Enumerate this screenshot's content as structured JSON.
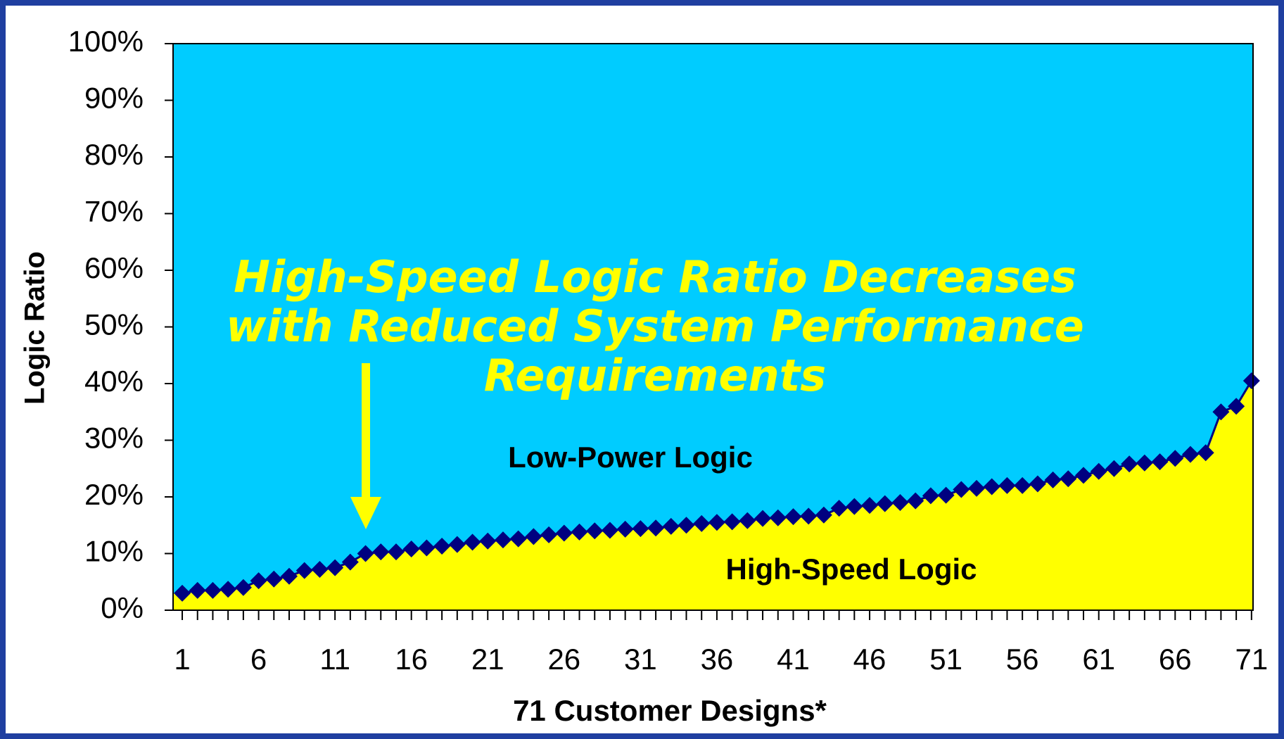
{
  "chart_data": {
    "type": "area",
    "annotation": [
      "High-Speed Logic Ratio Decreases",
      "with Reduced System Performance",
      "Requirements"
    ],
    "region_labels": [
      "Low-Power Logic",
      "High-Speed Logic"
    ],
    "x_label": "71 Customer Designs*",
    "y_label": "Logic Ratio",
    "x": [
      1,
      2,
      3,
      4,
      5,
      6,
      7,
      8,
      9,
      10,
      11,
      12,
      13,
      14,
      15,
      16,
      17,
      18,
      19,
      20,
      21,
      22,
      23,
      24,
      25,
      26,
      27,
      28,
      29,
      30,
      31,
      32,
      33,
      34,
      35,
      36,
      37,
      38,
      39,
      40,
      41,
      42,
      43,
      44,
      45,
      46,
      47,
      48,
      49,
      50,
      51,
      52,
      53,
      54,
      55,
      56,
      57,
      58,
      59,
      60,
      61,
      62,
      63,
      64,
      65,
      66,
      67,
      68,
      69,
      70,
      71
    ],
    "series": [
      {
        "name": "High-Speed Logic",
        "color": "#ffff00",
        "line_color": "#000080",
        "values": [
          3,
          3.5,
          3.5,
          3.7,
          4,
          5.2,
          5.5,
          6,
          7,
          7.2,
          7.5,
          8.5,
          10,
          10.3,
          10.3,
          10.8,
          11,
          11.3,
          11.6,
          12,
          12.2,
          12.4,
          12.6,
          13,
          13.3,
          13.6,
          13.8,
          14,
          14.1,
          14.3,
          14.4,
          14.5,
          14.8,
          15,
          15.3,
          15.5,
          15.6,
          15.8,
          16.2,
          16.3,
          16.5,
          16.6,
          16.8,
          18,
          18.3,
          18.5,
          18.8,
          19,
          19.3,
          20.2,
          20.3,
          21.3,
          21.5,
          21.8,
          22,
          22,
          22.3,
          23,
          23.2,
          23.8,
          24.5,
          25,
          25.8,
          26,
          26.2,
          26.8,
          27.5,
          27.8,
          35,
          36,
          40.5
        ]
      }
    ],
    "background_color": "#00ccff",
    "xlim": [
      0.4,
      71.1
    ],
    "xticks": [
      1,
      6,
      11,
      16,
      21,
      26,
      31,
      36,
      41,
      46,
      51,
      56,
      61,
      66,
      71
    ],
    "ylim": [
      0,
      100
    ],
    "yticks": [
      {
        "value": 0,
        "label": "0%"
      },
      {
        "value": 10,
        "label": "10%"
      },
      {
        "value": 20,
        "label": "20%"
      },
      {
        "value": 30,
        "label": "30%"
      },
      {
        "value": 40,
        "label": "40%"
      },
      {
        "value": 50,
        "label": "50%"
      },
      {
        "value": 60,
        "label": "60%"
      },
      {
        "value": 70,
        "label": "70%"
      },
      {
        "value": 80,
        "label": "80%"
      },
      {
        "value": 90,
        "label": "90%"
      },
      {
        "value": 100,
        "label": "100%"
      }
    ]
  }
}
